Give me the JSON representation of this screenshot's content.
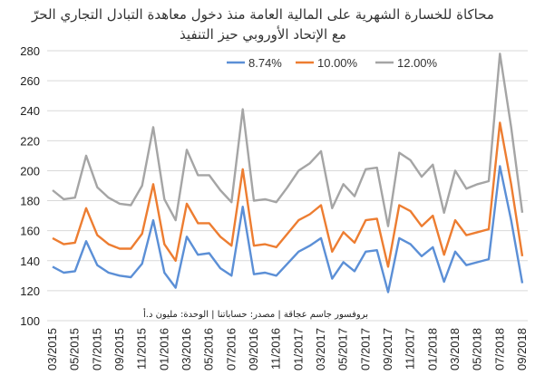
{
  "chart_data": {
    "type": "line",
    "title_line1": "محاكاة للخسارة الشهرية على المالية العامة منذ دخول معاهدة التبادل التجاري الحرّ",
    "title_line2": "مع الإتحاد الأوروبي حيز التنفيذ",
    "source_note": "بروفسور جاسم عجاقة | مصدر: حساباتنا | الوحدة: مليون د.أ",
    "x": [
      "03/2015",
      "04/2015",
      "05/2015",
      "06/2015",
      "07/2015",
      "08/2015",
      "09/2015",
      "10/2015",
      "11/2015",
      "12/2015",
      "01/2016",
      "02/2016",
      "03/2016",
      "04/2016",
      "05/2016",
      "06/2016",
      "07/2016",
      "08/2016",
      "09/2016",
      "10/2016",
      "11/2016",
      "12/2016",
      "01/2017",
      "02/2017",
      "03/2017",
      "04/2017",
      "05/2017",
      "06/2017",
      "07/2017",
      "08/2017",
      "09/2017",
      "10/2017",
      "11/2017",
      "12/2017",
      "01/2018",
      "02/2018",
      "03/2018",
      "04/2018",
      "05/2018",
      "06/2018",
      "07/2018",
      "08/2018",
      "09/2018"
    ],
    "x_tick_labels": [
      "03/2015",
      "05/2015",
      "07/2015",
      "09/2015",
      "11/2015",
      "01/2016",
      "03/2016",
      "05/2016",
      "07/2016",
      "09/2016",
      "11/2016",
      "01/2017",
      "03/2017",
      "05/2017",
      "07/2017",
      "09/2017",
      "11/2017",
      "01/2018",
      "03/2018",
      "05/2018",
      "07/2018",
      "09/2018"
    ],
    "ylim": [
      100,
      280
    ],
    "yticks": [
      100,
      120,
      140,
      160,
      180,
      200,
      220,
      240,
      260,
      280
    ],
    "grid": true,
    "legend_position": "top",
    "series": [
      {
        "name": "8.74%",
        "color": "#5B8FD6",
        "values": [
          136,
          132,
          133,
          153,
          137,
          132,
          130,
          129,
          138,
          167,
          132,
          122,
          156,
          144,
          145,
          135,
          130,
          176,
          131,
          132,
          130,
          138,
          146,
          150,
          155,
          128,
          139,
          133,
          146,
          147,
          119,
          155,
          151,
          143,
          149,
          126,
          146,
          137,
          139,
          141,
          203,
          167,
          125
        ]
      },
      {
        "name": "10.00%",
        "color": "#ED7D31",
        "values": [
          155,
          151,
          152,
          175,
          157,
          151,
          148,
          148,
          158,
          191,
          151,
          140,
          178,
          165,
          165,
          156,
          150,
          201,
          150,
          151,
          149,
          158,
          167,
          171,
          177,
          146,
          159,
          152,
          167,
          168,
          136,
          177,
          173,
          163,
          170,
          144,
          167,
          157,
          159,
          161,
          232,
          191,
          143
        ]
      },
      {
        "name": "12.00%",
        "color": "#A5A5A5",
        "values": [
          187,
          181,
          182,
          210,
          189,
          182,
          178,
          177,
          190,
          229,
          181,
          167,
          214,
          197,
          197,
          187,
          179,
          241,
          180,
          181,
          179,
          189,
          200,
          205,
          213,
          175,
          191,
          183,
          201,
          202,
          163,
          212,
          207,
          196,
          204,
          172,
          200,
          188,
          191,
          193,
          278,
          229,
          172
        ]
      }
    ]
  }
}
